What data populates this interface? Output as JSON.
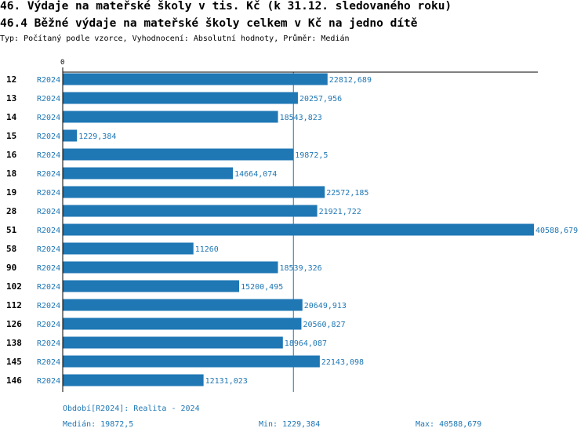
{
  "header": {
    "title": "46. Výdaje na mateřské školy v tis. Kč (k 31.12. sledovaného roku)",
    "subtitle": "46.4 Běžné výdaje na mateřské školy celkem v Kč na jedno dítě",
    "type_line": "Typ: Počítaný podle vzorce, Vyhodnocení: Absolutní hodnoty, Průměr: Medián"
  },
  "chart_data": {
    "type": "bar",
    "orientation": "horizontal",
    "x_tick_zero": "0",
    "xlim": [
      0,
      40588.679
    ],
    "median": 19872.5,
    "series_label": "R2024",
    "categories": [
      "12",
      "13",
      "14",
      "15",
      "16",
      "18",
      "19",
      "28",
      "51",
      "58",
      "90",
      "102",
      "112",
      "126",
      "138",
      "145",
      "146"
    ],
    "values": [
      22812.689,
      20257.956,
      18543.823,
      1229.384,
      19872.5,
      14664.074,
      22572.185,
      21921.722,
      40588.679,
      11260,
      18539.326,
      15200.495,
      20649.913,
      20560.827,
      18964.087,
      22143.098,
      12131.023
    ],
    "value_labels": [
      "22812,689",
      "20257,956",
      "18543,823",
      "1229,384",
      "19872,5",
      "14664,074",
      "22572,185",
      "21921,722",
      "40588,679",
      "11260",
      "18539,326",
      "15200,495",
      "20649,913",
      "20560,827",
      "18964,087",
      "22143,098",
      "12131,023"
    ],
    "bar_color": "#1f77b4",
    "label_color": "#1f77b4"
  },
  "footer": {
    "period": "Období[R2024]: Realita - 2024",
    "median": "Medián: 19872,5",
    "min": "Min: 1229,384",
    "max": "Max: 40588,679"
  }
}
